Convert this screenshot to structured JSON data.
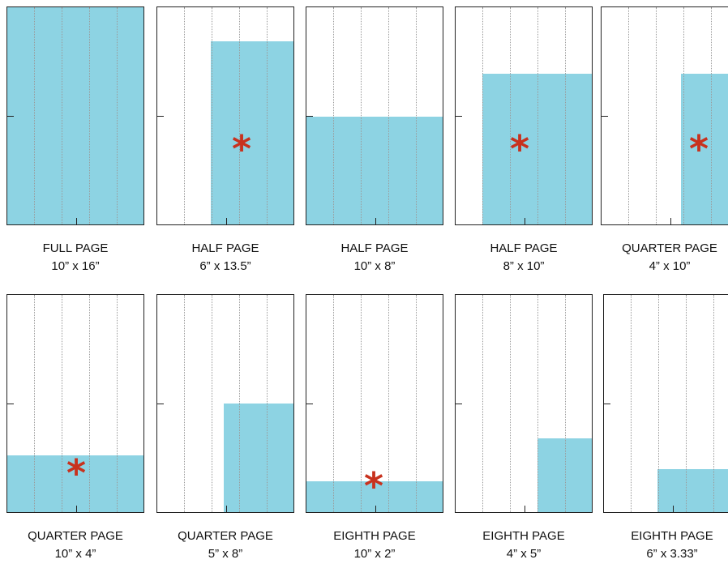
{
  "ad_sizes": [
    {
      "name": "FULL PAGE",
      "dims": "10” x 16”",
      "marked": false
    },
    {
      "name": "HALF PAGE",
      "dims": "6” x 13.5”",
      "marked": true
    },
    {
      "name": "HALF PAGE",
      "dims": "10” x 8”",
      "marked": false
    },
    {
      "name": "HALF PAGE",
      "dims": "8” x 10”",
      "marked": true
    },
    {
      "name": "QUARTER PAGE",
      "dims": "4” x 10”",
      "marked": true
    },
    {
      "name": "QUARTER PAGE",
      "dims": "10” x 4”",
      "marked": true
    },
    {
      "name": "QUARTER PAGE",
      "dims": "5” x 8”",
      "marked": false
    },
    {
      "name": "EIGHTH PAGE",
      "dims": "10” x 2”",
      "marked": true
    },
    {
      "name": "EIGHTH PAGE",
      "dims": "4” x 5”",
      "marked": false
    },
    {
      "name": "EIGHTH PAGE",
      "dims": "6” x 3.33”",
      "marked": false
    }
  ],
  "marker_symbol": "*",
  "colors": {
    "fill": "#8dd3e3",
    "marker": "#c8321e",
    "frame": "#222222"
  }
}
